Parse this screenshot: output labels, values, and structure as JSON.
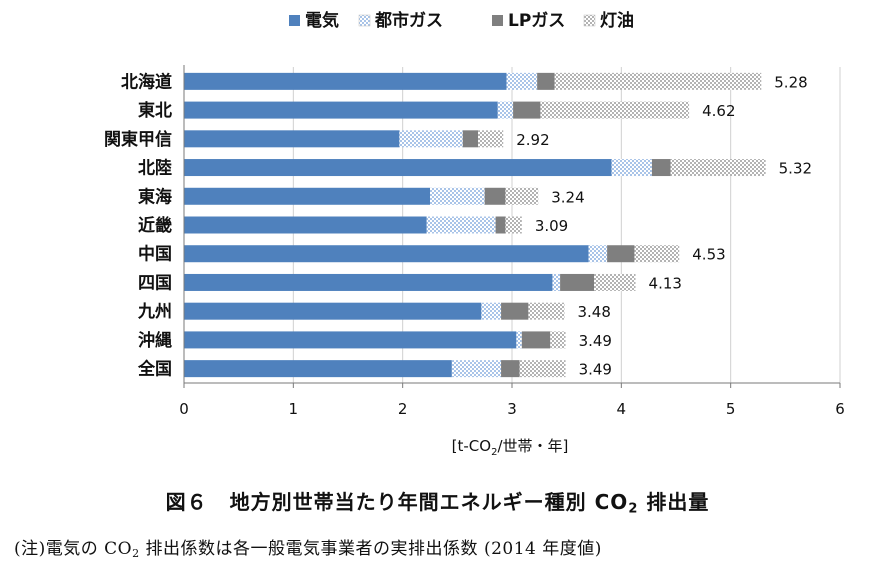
{
  "chart_data": {
    "type": "bar",
    "orientation": "horizontal",
    "stacked": true,
    "categories": [
      "北海道",
      "東北",
      "関東甲信",
      "北陸",
      "東海",
      "近畿",
      "中国",
      "四国",
      "九州",
      "沖縄",
      "全国"
    ],
    "series": [
      {
        "name": "電気",
        "color": "#4f81bd",
        "pattern": "solid",
        "values": [
          2.95,
          2.87,
          1.97,
          3.91,
          2.25,
          2.22,
          3.7,
          3.37,
          2.72,
          3.04,
          2.45
        ]
      },
      {
        "name": "都市ガス",
        "color": "#c6d9f1",
        "pattern": "checker-light-blue",
        "values": [
          0.28,
          0.14,
          0.58,
          0.37,
          0.5,
          0.63,
          0.17,
          0.07,
          0.18,
          0.05,
          0.45
        ]
      },
      {
        "name": "LPガス",
        "color": "#7f7f7f",
        "pattern": "solid",
        "values": [
          0.16,
          0.25,
          0.14,
          0.17,
          0.19,
          0.09,
          0.25,
          0.31,
          0.25,
          0.26,
          0.17
        ]
      },
      {
        "name": "灯油",
        "color": "#d9d9d9",
        "pattern": "checker-grey",
        "values": [
          1.89,
          1.36,
          0.23,
          0.87,
          0.3,
          0.15,
          0.41,
          0.38,
          0.33,
          0.14,
          0.42
        ]
      }
    ],
    "totals": [
      "5.28",
      "4.62",
      "2.92",
      "5.32",
      "3.24",
      "3.09",
      "4.53",
      "4.13",
      "3.48",
      "3.49",
      "3.49"
    ],
    "xlim": [
      0,
      6
    ],
    "xticks": [
      "0",
      "1",
      "2",
      "3",
      "4",
      "5",
      "6"
    ],
    "xlabel": "[t-CO2/世帯・年]",
    "legend_position": "top",
    "grid": "vertical"
  },
  "caption": {
    "figure_number": "図６",
    "title_before": "地方別世帯当たり年間エネルギー種別 CO",
    "title_sub": "2",
    "title_after": " 排出量"
  },
  "note": {
    "before": "(注)電気の CO",
    "sub": "2",
    "after": " 排出係数は各一般電気事業者の実排出係数 (2014 年度値)"
  }
}
